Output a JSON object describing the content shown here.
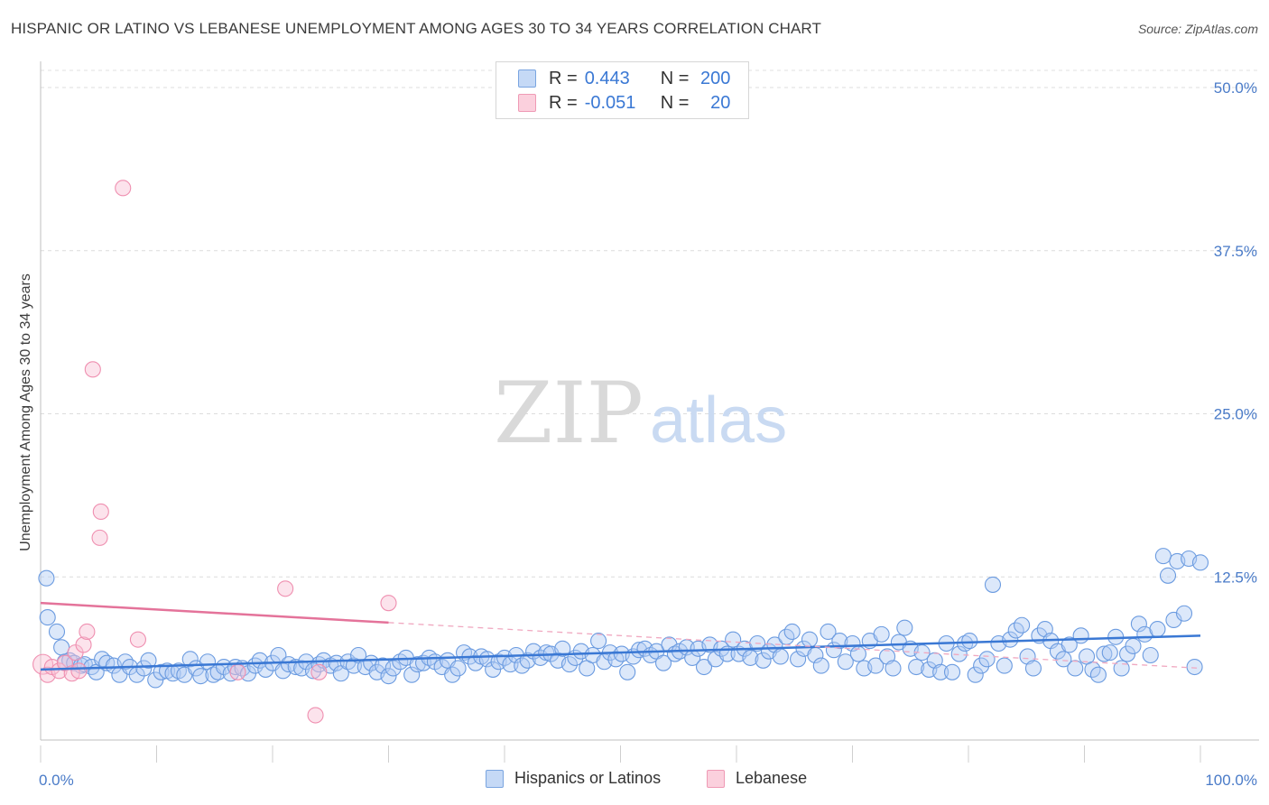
{
  "header": {
    "title": "HISPANIC OR LATINO VS LEBANESE UNEMPLOYMENT AMONG AGES 30 TO 34 YEARS CORRELATION CHART",
    "source_label": "Source:",
    "source_value": "ZipAtlas.com"
  },
  "legend": {
    "r_label": "R =",
    "n_label": "N =",
    "series": [
      {
        "name": "Hispanics or Latinos",
        "r": "0.443",
        "n": "200",
        "color": "#6b9be0"
      },
      {
        "name": "Lebanese",
        "r": "-0.051",
        "n": "20",
        "color": "#ef8fb0"
      }
    ]
  },
  "watermark": {
    "zip": "ZIP",
    "atlas": "atlas"
  },
  "chart_data": {
    "type": "scatter",
    "title": "HISPANIC OR LATINO VS LEBANESE UNEMPLOYMENT AMONG AGES 30 TO 34 YEARS CORRELATION CHART",
    "xlabel": "",
    "ylabel": "Unemployment Among Ages 30 to 34 years",
    "xlim": [
      0,
      100
    ],
    "ylim": [
      0,
      50
    ],
    "x_tick_labels": [
      "0.0%",
      "100.0%"
    ],
    "y_ticks": [
      12.5,
      25.0,
      37.5,
      50.0
    ],
    "y_tick_labels": [
      "12.5%",
      "25.0%",
      "37.5%",
      "50.0%"
    ],
    "grid": true,
    "series": [
      {
        "name": "Hispanics or Latinos",
        "color": "#6b9be0",
        "trend": {
          "x": [
            0,
            100
          ],
          "y": [
            5.4,
            8.0
          ],
          "style": "solid"
        },
        "points": [
          [
            0.5,
            12.4
          ],
          [
            0.6,
            9.4
          ],
          [
            1.4,
            8.3
          ],
          [
            1.8,
            7.1
          ],
          [
            2.1,
            6.0
          ],
          [
            2.5,
            6.1
          ],
          [
            2.9,
            5.9
          ],
          [
            3.5,
            5.7
          ],
          [
            3.8,
            5.8
          ],
          [
            4.4,
            5.6
          ],
          [
            4.8,
            5.2
          ],
          [
            5.3,
            6.2
          ],
          [
            5.7,
            5.9
          ],
          [
            6.3,
            5.7
          ],
          [
            6.8,
            5.0
          ],
          [
            7.3,
            6.0
          ],
          [
            7.7,
            5.6
          ],
          [
            8.3,
            5.0
          ],
          [
            8.9,
            5.5
          ],
          [
            9.3,
            6.1
          ],
          [
            9.9,
            4.6
          ],
          [
            10.4,
            5.2
          ],
          [
            10.9,
            5.3
          ],
          [
            11.4,
            5.1
          ],
          [
            11.9,
            5.3
          ],
          [
            12.4,
            5.0
          ],
          [
            12.9,
            6.2
          ],
          [
            13.4,
            5.5
          ],
          [
            13.8,
            4.9
          ],
          [
            14.4,
            6.0
          ],
          [
            14.9,
            5.0
          ],
          [
            15.3,
            5.2
          ],
          [
            15.8,
            5.6
          ],
          [
            16.4,
            5.1
          ],
          [
            16.8,
            5.6
          ],
          [
            17.4,
            5.5
          ],
          [
            17.9,
            5.1
          ],
          [
            18.5,
            5.7
          ],
          [
            18.9,
            6.1
          ],
          [
            19.4,
            5.4
          ],
          [
            20.0,
            5.9
          ],
          [
            20.5,
            6.5
          ],
          [
            20.9,
            5.3
          ],
          [
            21.4,
            5.8
          ],
          [
            22.0,
            5.6
          ],
          [
            22.5,
            5.5
          ],
          [
            22.9,
            6.0
          ],
          [
            23.5,
            5.3
          ],
          [
            24.0,
            5.8
          ],
          [
            24.4,
            6.1
          ],
          [
            25.0,
            5.7
          ],
          [
            25.5,
            5.9
          ],
          [
            25.9,
            5.1
          ],
          [
            26.5,
            6.0
          ],
          [
            27.0,
            5.7
          ],
          [
            27.4,
            6.5
          ],
          [
            28.0,
            5.6
          ],
          [
            28.5,
            5.9
          ],
          [
            29.0,
            5.2
          ],
          [
            29.5,
            5.7
          ],
          [
            30.0,
            4.9
          ],
          [
            30.4,
            5.5
          ],
          [
            31.0,
            6.0
          ],
          [
            31.5,
            6.3
          ],
          [
            32.0,
            5.0
          ],
          [
            32.5,
            5.8
          ],
          [
            33.0,
            5.9
          ],
          [
            33.5,
            6.3
          ],
          [
            34.0,
            6.0
          ],
          [
            34.6,
            5.6
          ],
          [
            35.1,
            6.1
          ],
          [
            35.5,
            5.0
          ],
          [
            36.0,
            5.5
          ],
          [
            36.5,
            6.7
          ],
          [
            37.0,
            6.4
          ],
          [
            37.5,
            5.9
          ],
          [
            38.0,
            6.4
          ],
          [
            38.5,
            6.2
          ],
          [
            39.0,
            5.4
          ],
          [
            39.5,
            6.0
          ],
          [
            40.0,
            6.3
          ],
          [
            40.5,
            5.8
          ],
          [
            41.0,
            6.5
          ],
          [
            41.5,
            5.7
          ],
          [
            42.0,
            6.1
          ],
          [
            42.5,
            6.8
          ],
          [
            43.1,
            6.3
          ],
          [
            43.6,
            6.7
          ],
          [
            44.0,
            6.6
          ],
          [
            44.6,
            6.1
          ],
          [
            45.0,
            7.0
          ],
          [
            45.6,
            5.8
          ],
          [
            46.1,
            6.3
          ],
          [
            46.6,
            6.8
          ],
          [
            47.1,
            5.5
          ],
          [
            47.6,
            6.5
          ],
          [
            48.1,
            7.6
          ],
          [
            48.6,
            6.0
          ],
          [
            49.1,
            6.7
          ],
          [
            49.6,
            6.2
          ],
          [
            50.1,
            6.6
          ],
          [
            50.6,
            5.2
          ],
          [
            51.1,
            6.4
          ],
          [
            51.6,
            6.9
          ],
          [
            52.1,
            7.0
          ],
          [
            52.6,
            6.5
          ],
          [
            53.1,
            6.8
          ],
          [
            53.7,
            5.9
          ],
          [
            54.2,
            7.3
          ],
          [
            54.7,
            6.6
          ],
          [
            55.1,
            6.8
          ],
          [
            55.7,
            7.1
          ],
          [
            56.2,
            6.3
          ],
          [
            56.7,
            7.0
          ],
          [
            57.2,
            5.6
          ],
          [
            57.7,
            7.3
          ],
          [
            58.2,
            6.2
          ],
          [
            58.7,
            7.0
          ],
          [
            59.2,
            6.6
          ],
          [
            59.7,
            7.7
          ],
          [
            60.2,
            6.6
          ],
          [
            60.7,
            7.0
          ],
          [
            61.2,
            6.3
          ],
          [
            61.8,
            7.4
          ],
          [
            62.3,
            6.1
          ],
          [
            62.8,
            6.8
          ],
          [
            63.3,
            7.3
          ],
          [
            63.8,
            6.4
          ],
          [
            64.3,
            7.9
          ],
          [
            64.8,
            8.3
          ],
          [
            65.3,
            6.2
          ],
          [
            65.8,
            7.0
          ],
          [
            66.3,
            7.7
          ],
          [
            66.8,
            6.5
          ],
          [
            67.3,
            5.7
          ],
          [
            67.9,
            8.3
          ],
          [
            68.4,
            6.9
          ],
          [
            68.9,
            7.6
          ],
          [
            69.4,
            6.0
          ],
          [
            70.0,
            7.4
          ],
          [
            70.5,
            6.6
          ],
          [
            71.0,
            5.5
          ],
          [
            71.5,
            7.6
          ],
          [
            72.0,
            5.7
          ],
          [
            72.5,
            8.1
          ],
          [
            73.0,
            6.4
          ],
          [
            73.5,
            5.5
          ],
          [
            74.0,
            7.5
          ],
          [
            74.5,
            8.6
          ],
          [
            75.0,
            7.0
          ],
          [
            75.5,
            5.6
          ],
          [
            76.0,
            6.7
          ],
          [
            76.6,
            5.4
          ],
          [
            77.1,
            6.1
          ],
          [
            77.6,
            5.2
          ],
          [
            78.1,
            7.4
          ],
          [
            78.6,
            5.2
          ],
          [
            79.2,
            6.6
          ],
          [
            79.7,
            7.4
          ],
          [
            80.1,
            7.6
          ],
          [
            80.6,
            5.0
          ],
          [
            81.1,
            5.7
          ],
          [
            81.6,
            6.2
          ],
          [
            82.1,
            11.9
          ],
          [
            82.6,
            7.4
          ],
          [
            83.1,
            5.7
          ],
          [
            83.6,
            7.7
          ],
          [
            84.1,
            8.4
          ],
          [
            84.6,
            8.8
          ],
          [
            85.1,
            6.4
          ],
          [
            85.6,
            5.5
          ],
          [
            86.1,
            8.0
          ],
          [
            86.6,
            8.5
          ],
          [
            87.1,
            7.6
          ],
          [
            87.7,
            6.8
          ],
          [
            88.2,
            6.2
          ],
          [
            88.7,
            7.3
          ],
          [
            89.2,
            5.5
          ],
          [
            89.7,
            8.0
          ],
          [
            90.2,
            6.4
          ],
          [
            90.7,
            5.4
          ],
          [
            91.2,
            5.0
          ],
          [
            91.7,
            6.6
          ],
          [
            92.2,
            6.7
          ],
          [
            92.7,
            7.9
          ],
          [
            93.2,
            5.5
          ],
          [
            93.7,
            6.6
          ],
          [
            94.2,
            7.2
          ],
          [
            94.7,
            8.9
          ],
          [
            95.2,
            8.1
          ],
          [
            95.7,
            6.5
          ],
          [
            96.3,
            8.5
          ],
          [
            96.8,
            14.1
          ],
          [
            97.2,
            12.6
          ],
          [
            97.7,
            9.2
          ],
          [
            98.0,
            13.7
          ],
          [
            98.6,
            9.7
          ],
          [
            99.0,
            13.9
          ],
          [
            99.5,
            5.6
          ],
          [
            100.0,
            13.6
          ]
        ]
      },
      {
        "name": "Lebanese",
        "color": "#ef8fb0",
        "trend": {
          "x": [
            0,
            30
          ],
          "y": [
            10.5,
            9.0
          ],
          "dashed_extension": {
            "x": [
              30,
              100
            ],
            "y": [
              9.0,
              5.5
            ]
          },
          "style": "solid"
        },
        "points": [
          [
            0.2,
            5.8
          ],
          [
            0.6,
            5.0
          ],
          [
            1.0,
            5.6
          ],
          [
            1.6,
            5.3
          ],
          [
            2.1,
            5.9
          ],
          [
            2.7,
            5.1
          ],
          [
            3.0,
            6.7
          ],
          [
            3.3,
            5.3
          ],
          [
            3.7,
            7.3
          ],
          [
            4.0,
            8.3
          ],
          [
            4.5,
            28.4
          ],
          [
            5.2,
            17.5
          ],
          [
            5.1,
            15.5
          ],
          [
            7.1,
            42.3
          ],
          [
            8.4,
            7.7
          ],
          [
            17.0,
            5.2
          ],
          [
            21.1,
            11.6
          ],
          [
            24.0,
            5.2
          ],
          [
            23.7,
            1.9
          ],
          [
            30.0,
            10.5
          ]
        ]
      }
    ]
  }
}
